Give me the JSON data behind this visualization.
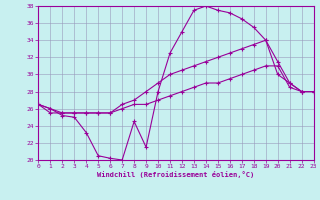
{
  "xlabel": "Windchill (Refroidissement éolien,°C)",
  "bg_color": "#c8f0f0",
  "grid_color": "#9999bb",
  "line_color": "#990099",
  "ylim": [
    20,
    38
  ],
  "xlim": [
    0,
    23
  ],
  "yticks": [
    20,
    22,
    24,
    26,
    28,
    30,
    32,
    34,
    36,
    38
  ],
  "xticks": [
    0,
    1,
    2,
    3,
    4,
    5,
    6,
    7,
    8,
    9,
    10,
    11,
    12,
    13,
    14,
    15,
    16,
    17,
    18,
    19,
    20,
    21,
    22,
    23
  ],
  "line1_x": [
    0,
    1,
    2,
    3,
    4,
    5,
    6,
    7,
    8,
    9,
    10,
    11,
    12,
    13,
    14,
    15,
    16,
    17,
    18,
    19,
    20,
    21,
    22,
    23
  ],
  "line1_y": [
    26.5,
    26.0,
    25.2,
    25.0,
    23.2,
    20.5,
    20.2,
    20.0,
    24.5,
    21.5,
    28.0,
    32.5,
    35.0,
    37.5,
    38.0,
    37.5,
    37.2,
    36.5,
    35.5,
    34.0,
    30.0,
    29.0,
    28.0,
    28.0
  ],
  "line2_x": [
    0,
    1,
    2,
    3,
    4,
    5,
    6,
    7,
    8,
    9,
    10,
    11,
    12,
    13,
    14,
    15,
    16,
    17,
    18,
    19,
    20,
    21,
    22,
    23
  ],
  "line2_y": [
    26.5,
    25.5,
    25.5,
    25.5,
    25.5,
    25.5,
    25.5,
    26.5,
    27.0,
    28.0,
    29.0,
    30.0,
    30.5,
    31.0,
    31.5,
    32.0,
    32.5,
    33.0,
    33.5,
    34.0,
    31.5,
    29.0,
    28.0,
    28.0
  ],
  "line3_x": [
    0,
    1,
    2,
    3,
    4,
    5,
    6,
    7,
    8,
    9,
    10,
    11,
    12,
    13,
    14,
    15,
    16,
    17,
    18,
    19,
    20,
    21,
    22,
    23
  ],
  "line3_y": [
    26.5,
    26.0,
    25.5,
    25.5,
    25.5,
    25.5,
    25.5,
    26.0,
    26.5,
    26.5,
    27.0,
    27.5,
    28.0,
    28.5,
    29.0,
    29.0,
    29.5,
    30.0,
    30.5,
    31.0,
    31.0,
    28.5,
    28.0,
    28.0
  ]
}
